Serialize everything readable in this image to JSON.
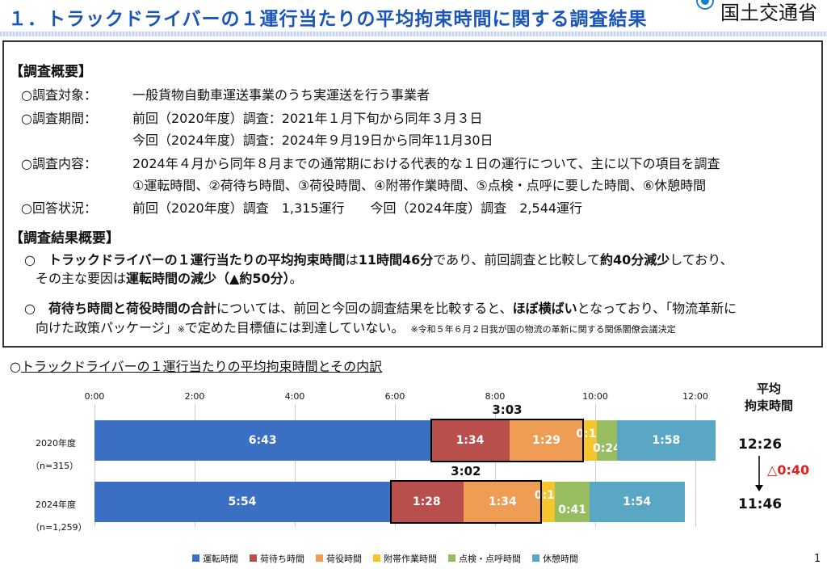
{
  "header": {
    "title": "１．トラックドライバーの１運行当たりの平均拘束時間に関する調査結果",
    "org": "国土交通省"
  },
  "overview": {
    "heading": "【調査概要】",
    "rows": [
      {
        "label": "○調査対象：",
        "text": "一般貨物自動車運送事業のうち実運送を行う事業者"
      },
      {
        "label": "○調査期間：",
        "text": "前回（2020年度）調査：2021年１月下旬から同年３月３日"
      },
      {
        "label": "",
        "text": "今回（2024年度）調査：2024年９月19日から同年11月30日"
      },
      {
        "label": "○調査内容：",
        "text": "2024年４月から同年８月までの通常期における代表的な１日の運行について、主に以下の項目を調査"
      },
      {
        "label": "",
        "text": "①運転時間、②荷待ち時間、③荷役時間、④附帯作業時間、⑤点検・点呼に要した時間、⑥休憩時間"
      },
      {
        "label": "○回答状況：",
        "text": "前回（2020年度）調査　1,315運行　　今回（2024年度）調査　2,544運行"
      }
    ]
  },
  "results": {
    "heading": "【調査結果概要】",
    "p1": {
      "bullet": "○",
      "b1": "トラックドライバーの１運行当たりの平均拘束時間",
      "t1": "は",
      "b2": "11時間46分",
      "t2": "であり、前回調査と比較して",
      "b3": "約40分減少",
      "t3": "しており、",
      "t4": "その主な要因は",
      "b4": "運転時間の減少（▲約50分）",
      "t5": "。"
    },
    "p2": {
      "bullet": "○",
      "b1": "荷待ち時間と荷役時間の合計",
      "t1": "については、前回と今回の調査結果を比較すると、",
      "b2": "ほぼ横ばい",
      "t2": "となっており、「物流革新に",
      "t3": "向けた政策パッケージ」",
      "note_mark": "※",
      "t4": "で定めた目標値には到達していない。",
      "note": "※令和５年６月２日我が国の物流の革新に関する関係閣僚会議決定"
    }
  },
  "section": {
    "prefix": "○",
    "title": "トラックドライバーの１運行当たりの平均拘束時間とその内訳"
  },
  "page_number": "1",
  "chart_data": {
    "type": "bar",
    "orientation": "horizontal",
    "stacked": true,
    "x_unit": "minutes",
    "xlim": [
      0,
      780
    ],
    "x_tick_labels": [
      "0:00",
      "2:00",
      "4:00",
      "6:00",
      "8:00",
      "10:00",
      "12:00"
    ],
    "x_tick_values": [
      0,
      120,
      240,
      360,
      480,
      600,
      720
    ],
    "total_header": [
      "平均",
      "拘束時間"
    ],
    "categories": [
      {
        "name": "2020年度",
        "n": "（n=315）",
        "total": "12:26",
        "bracket_label": "3:03"
      },
      {
        "name": "2024年度",
        "n": "（n=1,259）",
        "total": "11:46",
        "bracket_label": "3:02"
      }
    ],
    "series": [
      {
        "name": "運転時間",
        "color": "#3a6fc4",
        "values": [
          403,
          354
        ],
        "labels": [
          "6:43",
          "5:54"
        ]
      },
      {
        "name": "荷待ち時間",
        "color": "#b84f4c",
        "values": [
          94,
          88
        ],
        "labels": [
          "1:34",
          "1:28"
        ]
      },
      {
        "name": "荷役時間",
        "color": "#ef9c55",
        "values": [
          89,
          94
        ],
        "labels": [
          "1:29",
          "1:34"
        ]
      },
      {
        "name": "附帯作業時間",
        "color": "#f6c42b",
        "values": [
          16,
          16
        ],
        "labels": [
          "0:16",
          "0:16"
        ]
      },
      {
        "name": "点検・点呼時間",
        "color": "#97bd60",
        "values": [
          24,
          41
        ],
        "labels": [
          "0:24",
          "0:41"
        ]
      },
      {
        "name": "休憩時間",
        "color": "#59a7c4",
        "values": [
          118,
          114
        ],
        "labels": [
          "1:58",
          "1:54"
        ]
      }
    ],
    "change": {
      "symbol": "△",
      "value": "0:40",
      "color": "#e02020"
    }
  }
}
